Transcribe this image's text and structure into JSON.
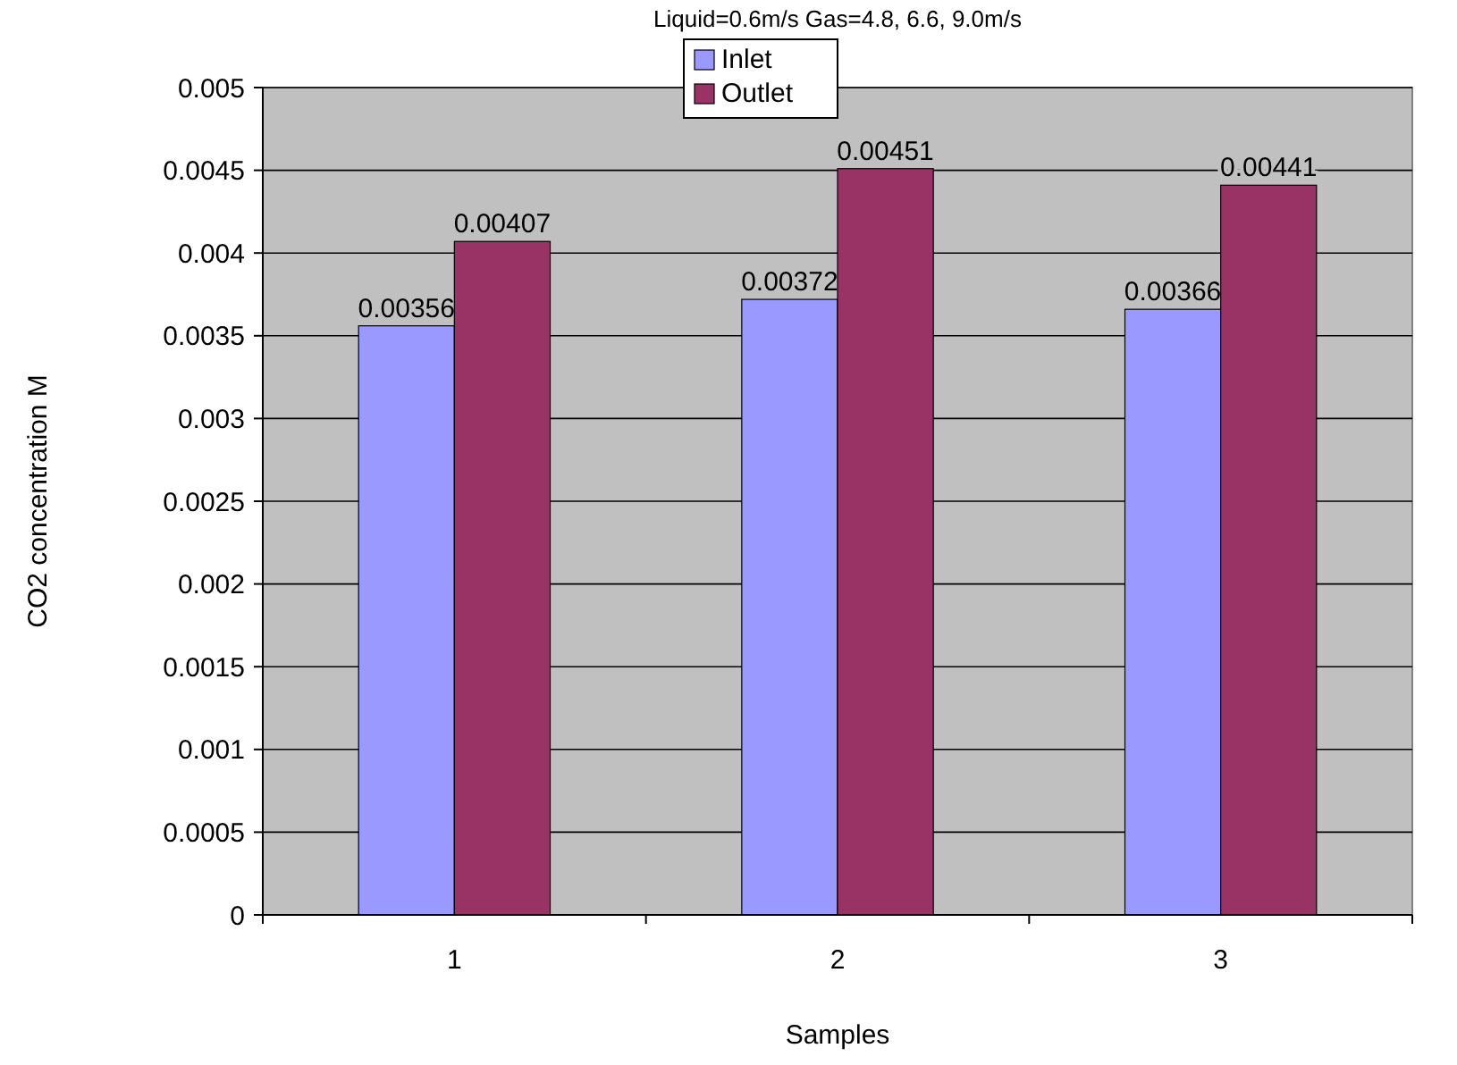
{
  "chart_data": {
    "type": "bar",
    "title": "Liquid=0.6m/s Gas=4.8, 6.6, 9.0m/s",
    "xlabel": "Samples",
    "ylabel": "CO2 concentration M",
    "categories": [
      "1",
      "2",
      "3"
    ],
    "series": [
      {
        "name": "Inlet",
        "color": "#9999ff",
        "values": [
          0.00356,
          0.00372,
          0.00366
        ]
      },
      {
        "name": "Outlet",
        "color": "#993366",
        "values": [
          0.00407,
          0.00451,
          0.00441
        ]
      }
    ],
    "ylim": [
      0,
      0.005
    ],
    "yticks": [
      0,
      0.0005,
      0.001,
      0.0015,
      0.002,
      0.0025,
      0.003,
      0.0035,
      0.004,
      0.0045,
      0.005
    ],
    "grid": "y",
    "legend": "top",
    "data_labels": true
  }
}
